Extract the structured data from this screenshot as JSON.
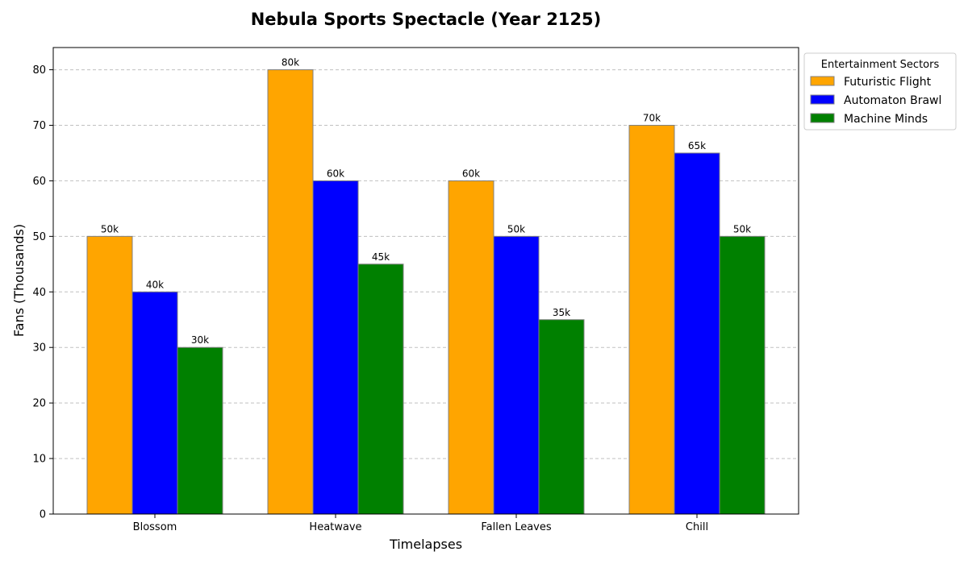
{
  "chart_data": {
    "type": "bar",
    "title": "Nebula Sports Spectacle (Year 2125)",
    "xlabel": "Timelapses",
    "ylabel": "Fans (Thousands)",
    "categories": [
      "Blossom",
      "Heatwave",
      "Fallen Leaves",
      "Chill"
    ],
    "series": [
      {
        "name": "Futuristic Flight",
        "color": "#ffa500",
        "values": [
          50,
          80,
          60,
          70
        ],
        "labels": [
          "50k",
          "80k",
          "60k",
          "70k"
        ]
      },
      {
        "name": "Automaton Brawl",
        "color": "#0000ff",
        "values": [
          40,
          60,
          50,
          65
        ],
        "labels": [
          "40k",
          "60k",
          "50k",
          "65k"
        ]
      },
      {
        "name": "Machine Minds",
        "color": "#008000",
        "values": [
          30,
          45,
          35,
          50
        ],
        "labels": [
          "30k",
          "45k",
          "35k",
          "50k"
        ]
      }
    ],
    "ylim": [
      0,
      84
    ],
    "yticks": [
      0,
      10,
      20,
      30,
      40,
      50,
      60,
      70,
      80
    ],
    "grid": "y-dashed",
    "legend": {
      "title": "Entertainment Sectors",
      "placement": "outside-top-right"
    }
  }
}
